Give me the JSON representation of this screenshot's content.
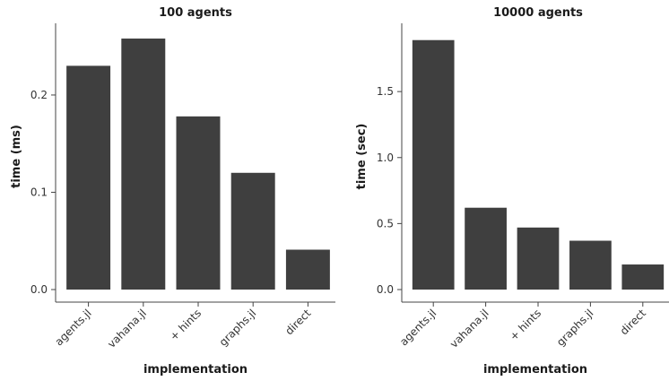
{
  "chart_data": [
    {
      "type": "bar",
      "title": "100 agents",
      "xlabel": "implementation",
      "ylabel": "time (ms)",
      "categories": [
        "agents.jl",
        "vahana.jl",
        "+ hints",
        "graphs.jl",
        "direct"
      ],
      "values": [
        0.23,
        0.258,
        0.178,
        0.12,
        0.041
      ],
      "ylim": [
        0,
        0.27
      ],
      "yticks": [
        0.0,
        0.1,
        0.2
      ],
      "ytick_labels": [
        "0.0",
        "0.1",
        "0.2"
      ],
      "bar_color": "#3f3f3f",
      "grid": false
    },
    {
      "type": "bar",
      "title": "10000 agents",
      "xlabel": "implementation",
      "ylabel": "time (sec)",
      "categories": [
        "agents.jl",
        "vahana.jl",
        "+ hints",
        "graphs.jl",
        "direct"
      ],
      "values": [
        1.89,
        0.62,
        0.47,
        0.37,
        0.19
      ],
      "ylim": [
        0,
        1.99
      ],
      "yticks": [
        0.0,
        0.5,
        1.0,
        1.5
      ],
      "ytick_labels": [
        "0.0",
        "0.5",
        "1.0",
        "1.5"
      ],
      "bar_color": "#3f3f3f",
      "grid": false
    }
  ]
}
